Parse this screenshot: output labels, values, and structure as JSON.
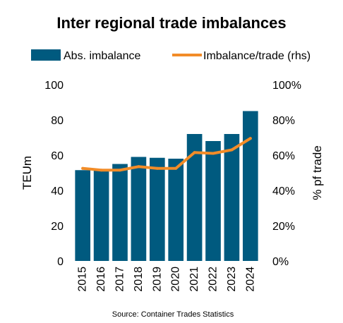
{
  "chart_data": {
    "type": "bar",
    "title": "Inter regional trade imbalances",
    "source": "Source: Container Trades Statistics",
    "categories": [
      "2015",
      "2016",
      "2017",
      "2018",
      "2019",
      "2020",
      "2021",
      "2022",
      "2023",
      "2024"
    ],
    "ylabel": "TEUm",
    "y2label": "% pf trade",
    "ylim": [
      0,
      100
    ],
    "y2lim": [
      0,
      1
    ],
    "yticks": [
      "0",
      "20",
      "40",
      "60",
      "80",
      "100"
    ],
    "y2ticks": [
      "0%",
      "20%",
      "40%",
      "60%",
      "80%",
      "100%"
    ],
    "grid": false,
    "legend_position": "top",
    "series": [
      {
        "name": "Abs. imbalance",
        "type": "bar",
        "axis": "left",
        "color": "#005a7f",
        "values": [
          51.5,
          51.5,
          55,
          59,
          58.5,
          58,
          72,
          68,
          72,
          85
        ]
      },
      {
        "name": "Imbalance/trade (rhs)",
        "type": "line",
        "axis": "right",
        "color": "#f28c28",
        "values": [
          0.525,
          0.515,
          0.515,
          0.535,
          0.525,
          0.525,
          0.615,
          0.61,
          0.63,
          0.695
        ]
      }
    ]
  }
}
